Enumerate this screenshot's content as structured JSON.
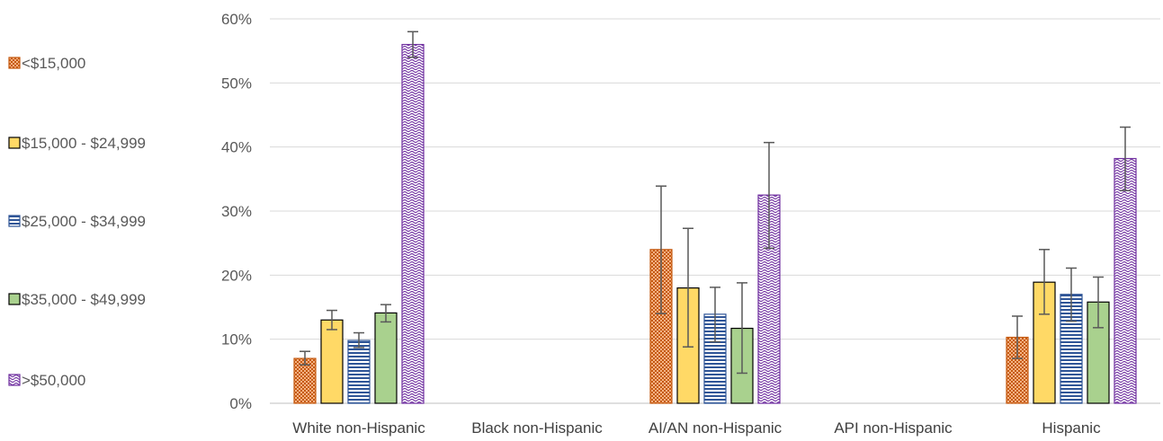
{
  "chart_data": {
    "type": "bar",
    "categories": [
      "White non-Hispanic",
      "Black non-Hispanic",
      "AI/AN non-Hispanic",
      "API non-Hispanic",
      "Hispanic"
    ],
    "series": [
      {
        "name": "<$15,000",
        "values": [
          7.0,
          null,
          24.0,
          null,
          10.3
        ],
        "err_low": [
          6.0,
          null,
          14.0,
          null,
          7.0
        ],
        "err_high": [
          8.1,
          null,
          33.9,
          null,
          13.6
        ],
        "color": "#C55A11",
        "pattern": "checker"
      },
      {
        "name": "$15,000 - $24,999",
        "values": [
          13.0,
          null,
          18.0,
          null,
          18.9
        ],
        "err_low": [
          11.5,
          null,
          8.8,
          null,
          13.9
        ],
        "err_high": [
          14.5,
          null,
          27.3,
          null,
          24.0
        ],
        "color": "#FFD966",
        "pattern": "solid"
      },
      {
        "name": "$25,000 - $34,999",
        "values": [
          9.8,
          null,
          13.9,
          null,
          17.0
        ],
        "err_low": [
          8.7,
          null,
          9.6,
          null,
          12.8
        ],
        "err_high": [
          11.0,
          null,
          18.1,
          null,
          21.1
        ],
        "color": "#2F5597",
        "pattern": "horizontal-lines"
      },
      {
        "name": "$35,000 - $49,999",
        "values": [
          14.1,
          null,
          11.7,
          null,
          15.8
        ],
        "err_low": [
          12.7,
          null,
          4.7,
          null,
          11.8
        ],
        "err_high": [
          15.4,
          null,
          18.8,
          null,
          19.7
        ],
        "color": "#A9D18E",
        "pattern": "solid"
      },
      {
        "name": ">$50,000",
        "values": [
          56.0,
          null,
          32.5,
          null,
          38.2
        ],
        "err_low": [
          54.0,
          null,
          24.2,
          null,
          33.2
        ],
        "err_high": [
          58.0,
          null,
          40.7,
          null,
          43.1
        ],
        "color": "#7030A0",
        "pattern": "wave"
      }
    ],
    "y_ticks": [
      "0%",
      "10%",
      "20%",
      "30%",
      "40%",
      "50%",
      "60%"
    ],
    "ylim": [
      0,
      60
    ],
    "y_unit": "%",
    "title": "",
    "xlabel": "",
    "ylabel": "",
    "grid": true,
    "legend_position": "left"
  }
}
